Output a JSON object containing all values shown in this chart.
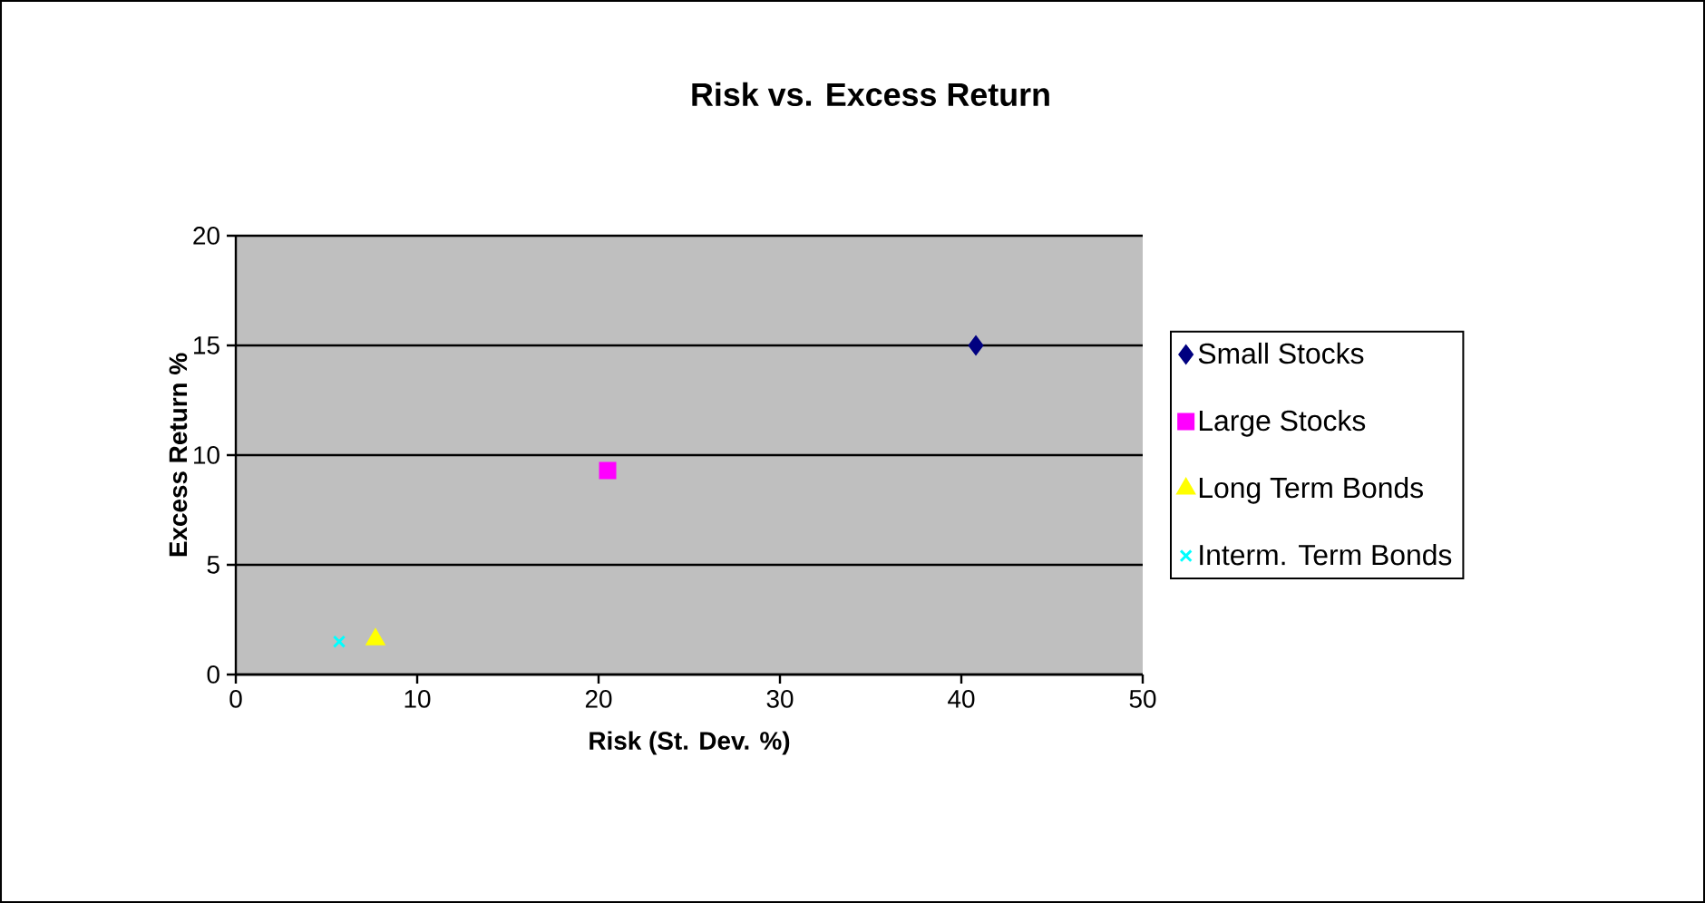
{
  "chart_data": {
    "type": "scatter",
    "title": "Risk vs. Excess Return",
    "xlabel": "Risk (St. Dev. %)",
    "ylabel": "Excess Return %",
    "xlim": [
      0,
      50
    ],
    "xticks": [
      0,
      10,
      20,
      30,
      40,
      50
    ],
    "ylim": [
      0,
      20
    ],
    "yticks": [
      0,
      5,
      10,
      15,
      20
    ],
    "grid": "y",
    "legend": "right",
    "series": [
      {
        "name": "Small Stocks",
        "color": "#000080",
        "marker": "diamond",
        "x": [
          40.8
        ],
        "values": [
          15.0
        ]
      },
      {
        "name": "Large Stocks",
        "color": "#ff00ff",
        "marker": "square",
        "x": [
          20.5
        ],
        "values": [
          9.3
        ]
      },
      {
        "name": "Long Term Bonds",
        "color": "#ffff00",
        "marker": "triangle",
        "x": [
          7.7
        ],
        "values": [
          1.6
        ]
      },
      {
        "name": "Interm. Term Bonds",
        "color": "#00ffff",
        "marker": "cross",
        "x": [
          5.7
        ],
        "values": [
          1.5
        ]
      }
    ]
  }
}
